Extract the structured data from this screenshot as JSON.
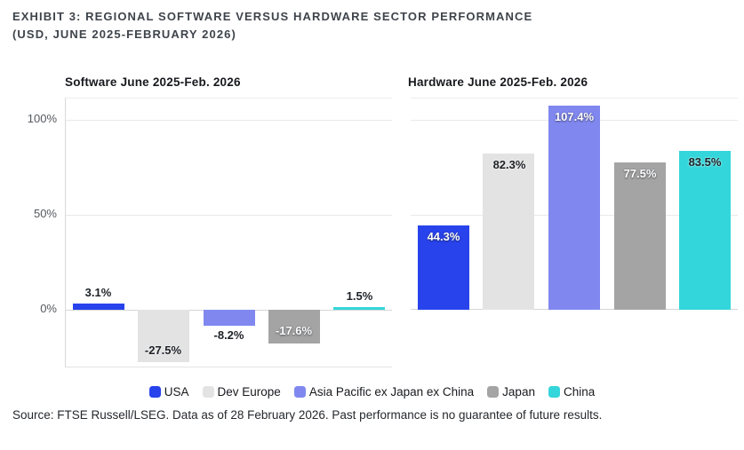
{
  "header": {
    "line1": "EXHIBIT 3: REGIONAL SOFTWARE VERSUS HARDWARE SECTOR PERFORMANCE",
    "line2": "(USD, JUNE 2025-FEBRUARY 2026)"
  },
  "chart_data": [
    {
      "type": "bar",
      "title": "Software June 2025-Feb. 2026",
      "categories": [
        "USA",
        "Dev Europe",
        "Asia Pacific ex Japan ex China",
        "Japan",
        "China"
      ],
      "values": [
        3.1,
        -27.5,
        -8.2,
        -17.6,
        1.5
      ],
      "labels": [
        "3.1%",
        "-27.5%",
        "-8.2%",
        "-17.6%",
        "1.5%"
      ],
      "label_placement": [
        "above",
        "inside-bottom",
        "below",
        "inside-bottom",
        "above"
      ],
      "label_color": [
        "dark",
        "dark",
        "dark",
        "white",
        "dark"
      ],
      "unit": "%",
      "ylim": [
        -30,
        111
      ],
      "yticks": [
        {
          "value": 0,
          "label": "0%"
        },
        {
          "value": 50,
          "label": "50%"
        },
        {
          "value": 100,
          "label": "100%"
        }
      ],
      "show_ytick_labels": true,
      "grid": true,
      "legend_position": "bottom-center"
    },
    {
      "type": "bar",
      "title": "Hardware June 2025-Feb. 2026",
      "categories": [
        "USA",
        "Dev Europe",
        "Asia Pacific ex Japan ex China",
        "Japan",
        "China"
      ],
      "values": [
        44.3,
        82.3,
        107.4,
        77.5,
        83.5
      ],
      "labels": [
        "44.3%",
        "82.3%",
        "107.4%",
        "77.5%",
        "83.5%"
      ],
      "label_placement": [
        "inside-top",
        "inside-top",
        "inside-top",
        "inside-top",
        "inside-top"
      ],
      "label_color": [
        "white",
        "dark",
        "white",
        "white",
        "dark"
      ],
      "unit": "%",
      "ylim": [
        0,
        111
      ],
      "yticks": [
        {
          "value": 0,
          "label": "0%"
        },
        {
          "value": 50,
          "label": "50%"
        },
        {
          "value": 100,
          "label": "100%"
        }
      ],
      "show_ytick_labels": false,
      "grid": true,
      "legend_position": "bottom-center"
    }
  ],
  "legend": {
    "items": [
      "USA",
      "Dev Europe",
      "Asia Pacific ex Japan ex China",
      "Japan",
      "China"
    ]
  },
  "colors": {
    "series": {
      "USA": "#2843ec",
      "Dev Europe": "#e3e3e3",
      "Asia Pacific ex Japan ex China": "#8088ef",
      "Japan": "#a4a4a4",
      "China": "#33d6da"
    },
    "grid": "#e9e9e9",
    "baseline": "#d6d6d6",
    "title_text": "#3e444b",
    "tick_label_text": "#55595f",
    "dark_label_text": "#1d2126",
    "white_label_text": "#ffffff"
  },
  "source": "Source: FTSE Russell/LSEG. Data as of 28 February 2026. Past performance is no guarantee of future results."
}
